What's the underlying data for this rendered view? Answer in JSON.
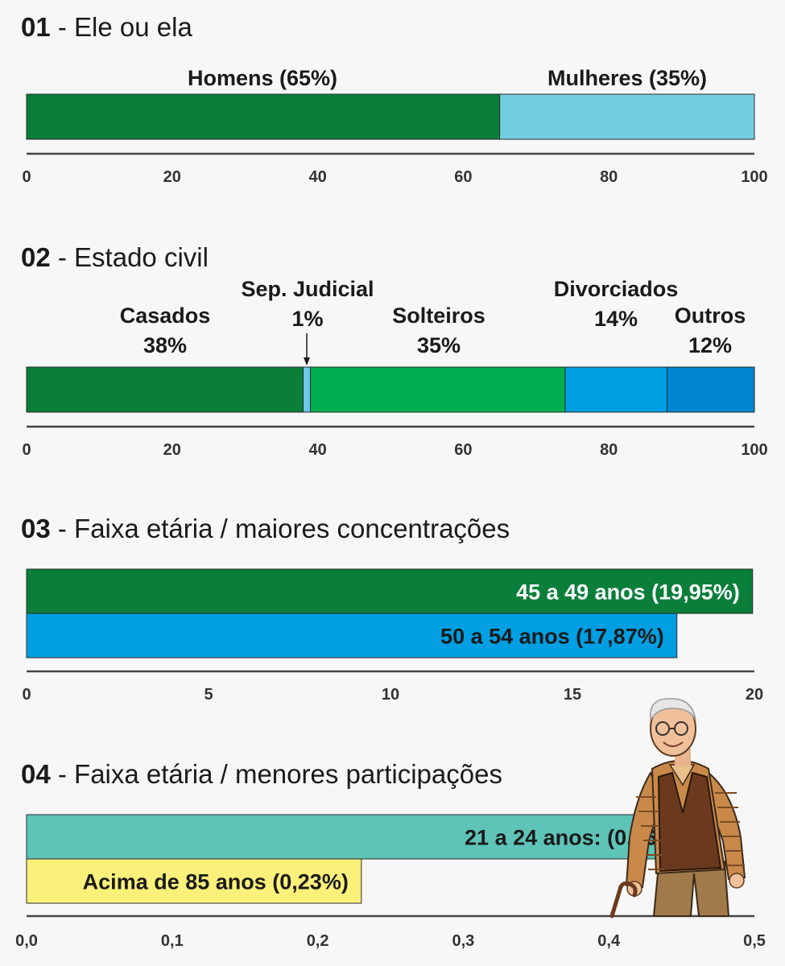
{
  "chart_data": [
    {
      "type": "bar",
      "number": "01",
      "title": "Ele ou ela",
      "stacked": true,
      "xlim": [
        0,
        100
      ],
      "ticks": [
        "0",
        "20",
        "40",
        "60",
        "80",
        "100"
      ],
      "segments": [
        {
          "label": "Homens (65%)",
          "value": 65,
          "color": "#0a7f3a"
        },
        {
          "label": "Mulheres (35%)",
          "value": 35,
          "color": "#72cfe2"
        }
      ]
    },
    {
      "type": "bar",
      "number": "02",
      "title": "Estado civil",
      "stacked": true,
      "xlim": [
        0,
        100
      ],
      "ticks": [
        "0",
        "20",
        "40",
        "60",
        "80",
        "100"
      ],
      "segments": [
        {
          "label": "Casados",
          "pct": "38%",
          "value": 38,
          "color": "#0a7f3a"
        },
        {
          "label": "Sep. Judicial",
          "pct": "1%",
          "value": 1,
          "color": "#6ec6ea"
        },
        {
          "label": "Solteiros",
          "pct": "35%",
          "value": 35,
          "color": "#00b050"
        },
        {
          "label": "Divorciados",
          "pct": "14%",
          "value": 14,
          "color": "#009fe3"
        },
        {
          "label": "Outros",
          "pct": "12%",
          "value": 12,
          "color": "#0087cf"
        }
      ]
    },
    {
      "type": "bar",
      "number": "03",
      "title": "Faixa etária / maiores concentrações",
      "stacked": false,
      "xlim": [
        0,
        20
      ],
      "ticks": [
        "0",
        "5",
        "10",
        "15",
        "20"
      ],
      "bars": [
        {
          "label": "45 a 49 anos (19,95%)",
          "value": 19.95,
          "color": "#0a7f3a",
          "text_color": "#ffffff"
        },
        {
          "label": "50 a 54 anos (17,87%)",
          "value": 17.87,
          "color": "#009fe3",
          "text_color": "#1a1a1a"
        }
      ]
    },
    {
      "type": "bar",
      "number": "04",
      "title": "Faixa etária / menores participações",
      "stacked": false,
      "xlim": [
        0,
        0.5
      ],
      "ticks": [
        "0,0",
        "0,1",
        "0,2",
        "0,3",
        "0,4",
        "0,5"
      ],
      "bars": [
        {
          "label": "21 a 24 anos: (0,46%)",
          "value": 0.46,
          "color": "#5fc4b8",
          "text_color": "#1a1a1a"
        },
        {
          "label": "Acima de 85 anos (0,23%)",
          "value": 0.23,
          "color": "#fbf07a",
          "text_color": "#1a1a1a"
        }
      ]
    }
  ],
  "illustration": {
    "icon": "elderly-man-with-cane-icon"
  }
}
